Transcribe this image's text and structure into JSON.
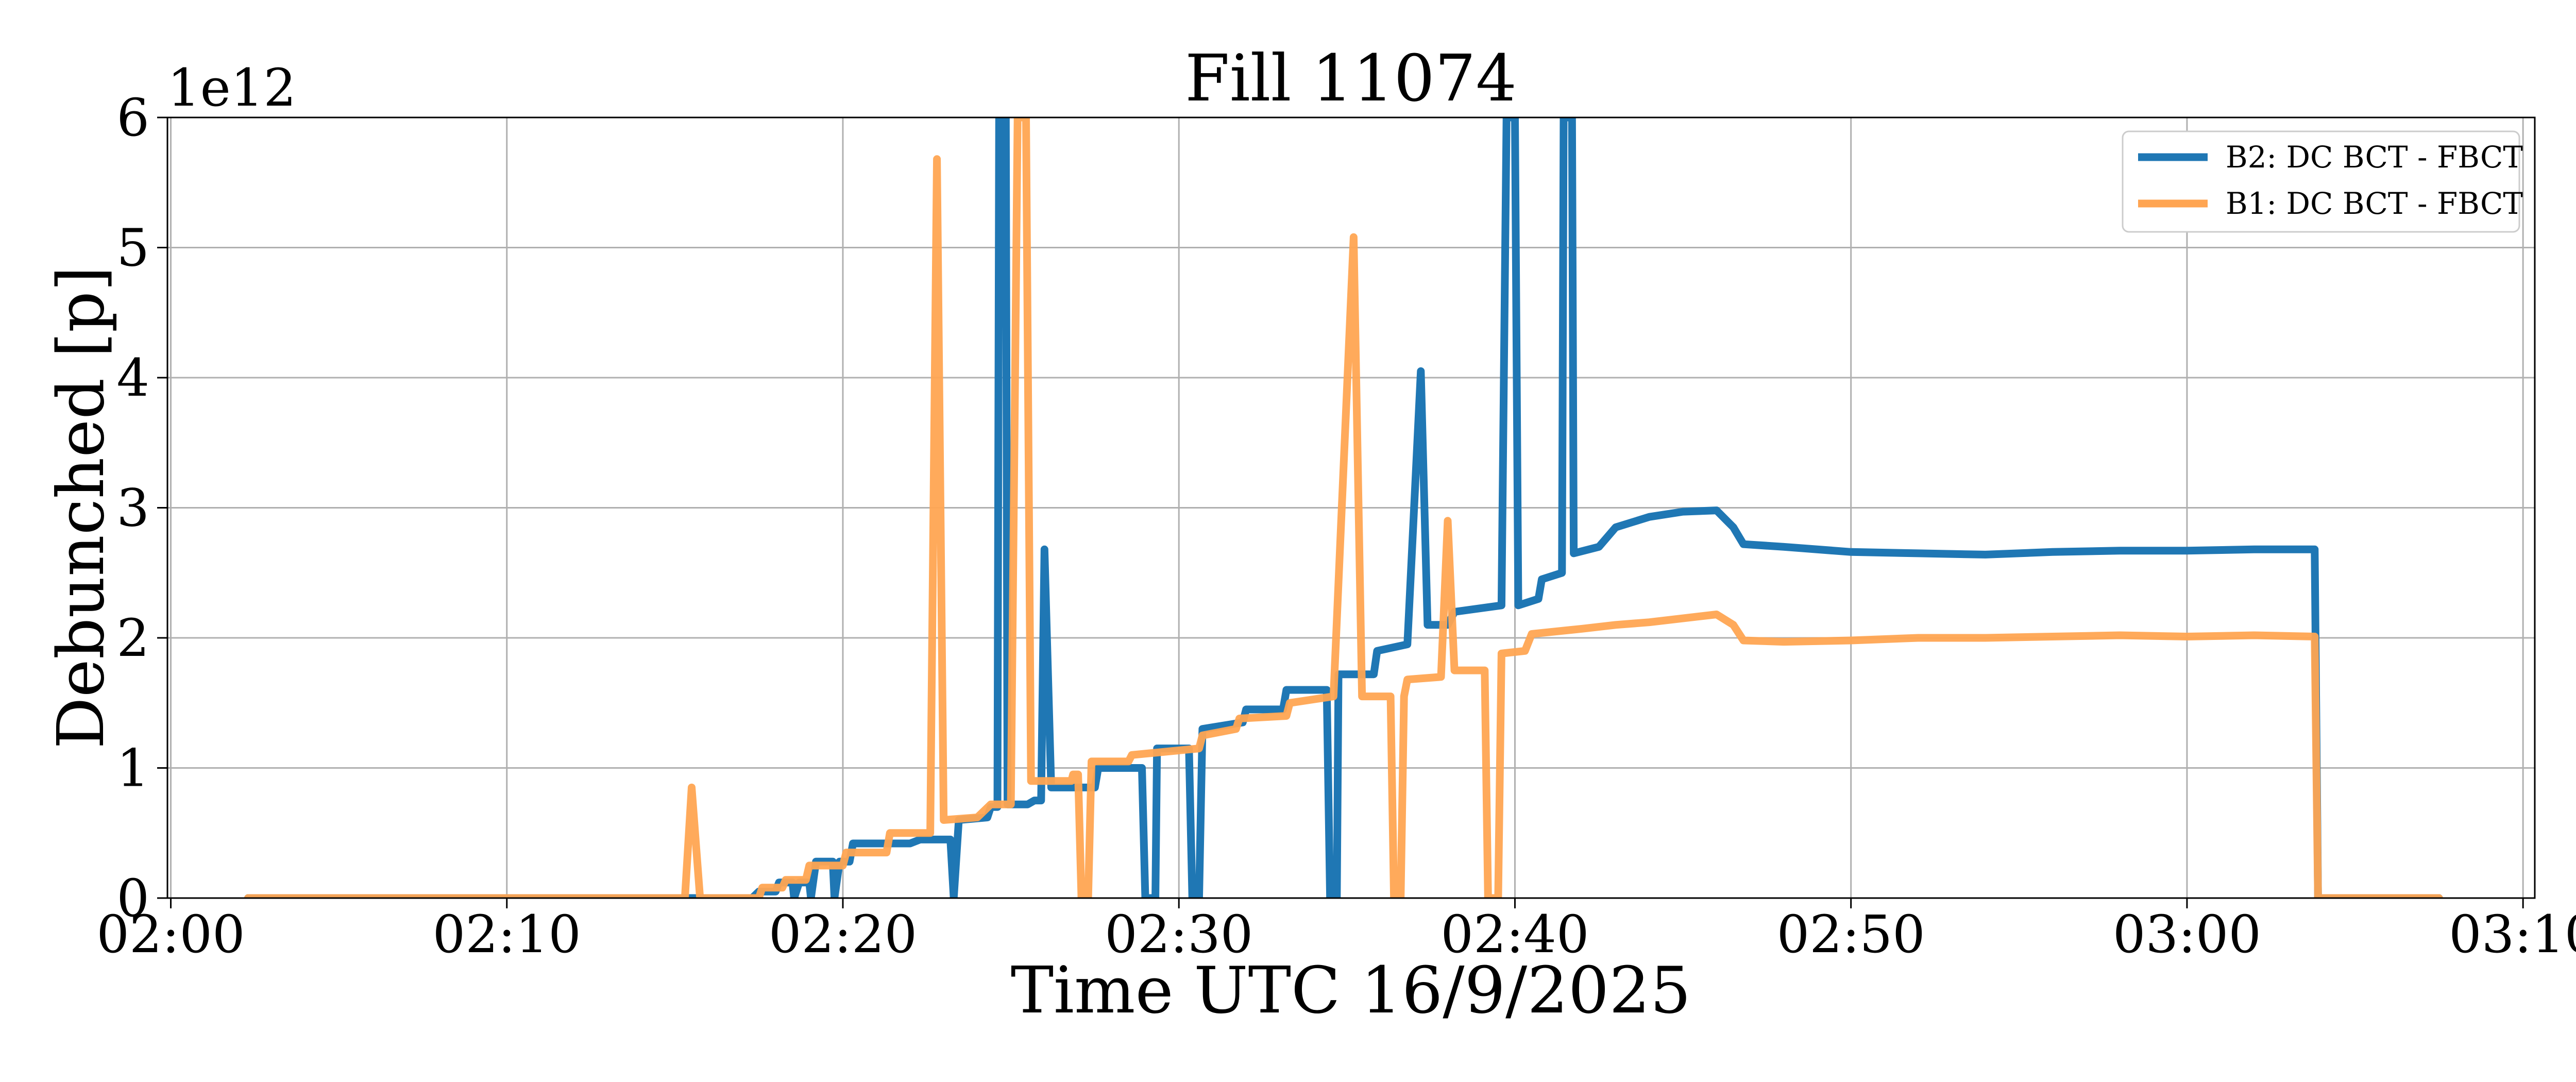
{
  "chart_data": {
    "type": "line",
    "title": "Fill 11074",
    "xlabel": "Time UTC 16/9/2025",
    "ylabel": "Debunched [p]",
    "y_multiplier_label": "1e12",
    "xlim": [
      "02:00",
      "03:10"
    ],
    "ylim": [
      0,
      6
    ],
    "x_ticks": [
      "02:00",
      "02:10",
      "02:20",
      "02:30",
      "02:40",
      "02:50",
      "03:00",
      "03:10"
    ],
    "y_ticks": [
      "0",
      "1",
      "2",
      "3",
      "4",
      "5",
      "6"
    ],
    "grid": true,
    "legend_position": "top-right",
    "x_unit": "minutes after 02:00 UTC",
    "y_unit": "1e12 protons",
    "series": [
      {
        "name": "B2: DC BCT - FBCT",
        "color": "#1f77b4",
        "points": [
          [
            2.3,
            0
          ],
          [
            17.3,
            0
          ],
          [
            17.5,
            0.05
          ],
          [
            18.0,
            0.05
          ],
          [
            18.1,
            0.12
          ],
          [
            18.5,
            0.12
          ],
          [
            18.55,
            0
          ],
          [
            18.7,
            0.12
          ],
          [
            19.0,
            0.12
          ],
          [
            19.05,
            0
          ],
          [
            19.2,
            0.28
          ],
          [
            19.7,
            0.28
          ],
          [
            19.75,
            0
          ],
          [
            19.9,
            0.28
          ],
          [
            20.2,
            0.28
          ],
          [
            20.3,
            0.42
          ],
          [
            22.0,
            0.42
          ],
          [
            22.3,
            0.45
          ],
          [
            23.2,
            0.45
          ],
          [
            23.3,
            0
          ],
          [
            23.45,
            0.6
          ],
          [
            24.3,
            0.62
          ],
          [
            24.4,
            0.7
          ],
          [
            24.6,
            0.7
          ],
          [
            24.65,
            6.1
          ],
          [
            24.85,
            6.1
          ],
          [
            24.9,
            0.72
          ],
          [
            25.5,
            0.72
          ],
          [
            25.7,
            0.75
          ],
          [
            25.9,
            0.75
          ],
          [
            26.0,
            2.68
          ],
          [
            26.2,
            0.85
          ],
          [
            27.5,
            0.85
          ],
          [
            27.6,
            1.0
          ],
          [
            28.9,
            1.0
          ],
          [
            29.0,
            0
          ],
          [
            29.3,
            0
          ],
          [
            29.35,
            1.15
          ],
          [
            30.3,
            1.15
          ],
          [
            30.4,
            0
          ],
          [
            30.6,
            0
          ],
          [
            30.7,
            1.3
          ],
          [
            31.9,
            1.35
          ],
          [
            32.0,
            1.45
          ],
          [
            33.1,
            1.45
          ],
          [
            33.2,
            1.6
          ],
          [
            34.4,
            1.6
          ],
          [
            34.5,
            0
          ],
          [
            34.7,
            0
          ],
          [
            34.75,
            1.72
          ],
          [
            35.8,
            1.72
          ],
          [
            35.9,
            1.9
          ],
          [
            36.8,
            1.95
          ],
          [
            37.2,
            4.05
          ],
          [
            37.4,
            2.1
          ],
          [
            38.0,
            2.1
          ],
          [
            38.2,
            2.2
          ],
          [
            39.6,
            2.25
          ],
          [
            39.75,
            6.1
          ],
          [
            40.0,
            6.1
          ],
          [
            40.1,
            2.25
          ],
          [
            40.7,
            2.3
          ],
          [
            40.8,
            2.45
          ],
          [
            41.4,
            2.5
          ],
          [
            41.45,
            6.1
          ],
          [
            41.7,
            6.1
          ],
          [
            41.75,
            2.65
          ],
          [
            42.5,
            2.7
          ],
          [
            43.0,
            2.85
          ],
          [
            44.0,
            2.93
          ],
          [
            45.0,
            2.97
          ],
          [
            46.0,
            2.98
          ],
          [
            46.5,
            2.85
          ],
          [
            46.8,
            2.72
          ],
          [
            48.0,
            2.7
          ],
          [
            50.0,
            2.66
          ],
          [
            52.0,
            2.65
          ],
          [
            54.0,
            2.64
          ],
          [
            56.0,
            2.66
          ],
          [
            58.0,
            2.67
          ],
          [
            60.0,
            2.67
          ],
          [
            62.0,
            2.68
          ],
          [
            63.8,
            2.68
          ],
          [
            63.9,
            0
          ],
          [
            67.5,
            0
          ]
        ]
      },
      {
        "name": "B1: DC BCT - FBCT",
        "color": "#ffa552",
        "points": [
          [
            2.3,
            0
          ],
          [
            15.3,
            0
          ],
          [
            15.5,
            0.85
          ],
          [
            15.75,
            0
          ],
          [
            17.5,
            0
          ],
          [
            17.6,
            0.08
          ],
          [
            18.2,
            0.08
          ],
          [
            18.3,
            0.14
          ],
          [
            18.9,
            0.14
          ],
          [
            19.0,
            0.25
          ],
          [
            20.0,
            0.25
          ],
          [
            20.1,
            0.35
          ],
          [
            21.3,
            0.35
          ],
          [
            21.4,
            0.5
          ],
          [
            22.6,
            0.5
          ],
          [
            22.8,
            5.68
          ],
          [
            23.0,
            0.6
          ],
          [
            24.0,
            0.62
          ],
          [
            24.4,
            0.72
          ],
          [
            25.0,
            0.72
          ],
          [
            25.2,
            6.1
          ],
          [
            25.45,
            6.1
          ],
          [
            25.6,
            0.9
          ],
          [
            26.8,
            0.9
          ],
          [
            26.85,
            0.95
          ],
          [
            27.0,
            0.95
          ],
          [
            27.1,
            0
          ],
          [
            27.3,
            0
          ],
          [
            27.4,
            1.05
          ],
          [
            28.5,
            1.05
          ],
          [
            28.6,
            1.1
          ],
          [
            30.6,
            1.15
          ],
          [
            30.7,
            1.25
          ],
          [
            31.7,
            1.3
          ],
          [
            31.8,
            1.38
          ],
          [
            33.2,
            1.4
          ],
          [
            33.3,
            1.5
          ],
          [
            34.6,
            1.55
          ],
          [
            35.2,
            5.08
          ],
          [
            35.45,
            1.55
          ],
          [
            36.3,
            1.55
          ],
          [
            36.4,
            0
          ],
          [
            36.6,
            0
          ],
          [
            36.7,
            1.55
          ],
          [
            36.8,
            1.68
          ],
          [
            37.8,
            1.7
          ],
          [
            38.0,
            2.9
          ],
          [
            38.2,
            1.75
          ],
          [
            39.1,
            1.75
          ],
          [
            39.2,
            0
          ],
          [
            39.5,
            0
          ],
          [
            39.6,
            1.88
          ],
          [
            40.3,
            1.9
          ],
          [
            40.5,
            2.03
          ],
          [
            42.0,
            2.07
          ],
          [
            43.0,
            2.1
          ],
          [
            44.0,
            2.12
          ],
          [
            45.0,
            2.15
          ],
          [
            46.0,
            2.18
          ],
          [
            46.5,
            2.1
          ],
          [
            46.8,
            1.98
          ],
          [
            48.0,
            1.97
          ],
          [
            50.0,
            1.98
          ],
          [
            52.0,
            2.0
          ],
          [
            54.0,
            2.0
          ],
          [
            56.0,
            2.01
          ],
          [
            58.0,
            2.02
          ],
          [
            60.0,
            2.01
          ],
          [
            62.0,
            2.02
          ],
          [
            63.8,
            2.01
          ],
          [
            63.9,
            0
          ],
          [
            67.5,
            0
          ]
        ]
      }
    ]
  }
}
